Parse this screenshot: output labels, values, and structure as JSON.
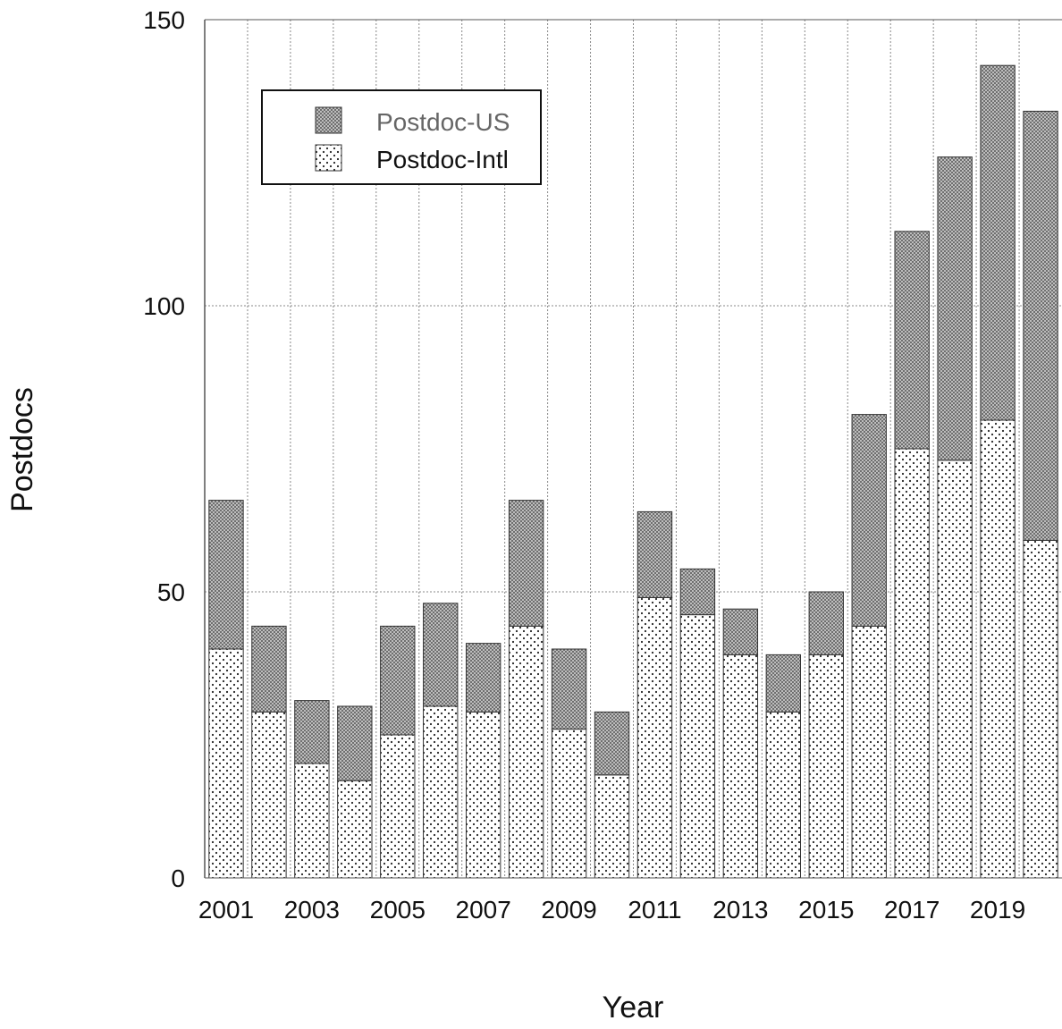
{
  "chart_data": {
    "type": "bar",
    "stacked": true,
    "xlabel": "Year",
    "ylabel": "Postdocs",
    "ylim": [
      0,
      150
    ],
    "yticks": [
      0,
      50,
      100,
      150
    ],
    "xtick_labels": [
      "2001",
      "2003",
      "2005",
      "2007",
      "2009",
      "2011",
      "2013",
      "2015",
      "2017",
      "2019"
    ],
    "categories": [
      "2001",
      "2002",
      "2003",
      "2004",
      "2005",
      "2006",
      "2007",
      "2008",
      "2009",
      "2010",
      "2011",
      "2012",
      "2013",
      "2014",
      "2015",
      "2016",
      "2017",
      "2018",
      "2019",
      "2020"
    ],
    "grid": true,
    "legend_position": "top-left",
    "series": [
      {
        "name": "Postdoc-Intl",
        "pattern": "dots",
        "values": [
          40,
          29,
          20,
          17,
          25,
          30,
          29,
          44,
          26,
          18,
          49,
          46,
          39,
          29,
          39,
          44,
          75,
          73,
          80,
          59
        ]
      },
      {
        "name": "Postdoc-US",
        "pattern": "crosshatch",
        "values": [
          26,
          15,
          11,
          13,
          19,
          18,
          12,
          22,
          14,
          11,
          15,
          8,
          8,
          10,
          11,
          37,
          38,
          53,
          62,
          75
        ]
      }
    ],
    "legend_order": [
      "Postdoc-US",
      "Postdoc-Intl"
    ]
  },
  "colors": {
    "axis": "#555555",
    "grid": "#888888",
    "bar_outline": "#333333",
    "us_fill_dark": "#777777",
    "us_fill_light": "#bdbdbd",
    "intl_dot": "#222222",
    "legend_us_text": "#666666",
    "legend_intl_text": "#111111"
  }
}
